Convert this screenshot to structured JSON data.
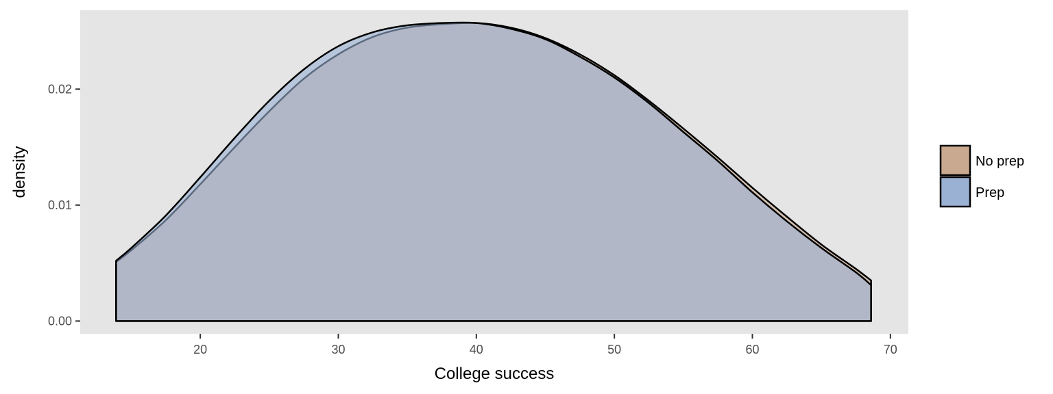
{
  "chart_data": {
    "type": "area",
    "subtype": "density",
    "title": "",
    "xlabel": "College success",
    "ylabel": "density",
    "xlim": [
      11.3,
      71.3
    ],
    "ylim": [
      -0.0011,
      0.0268
    ],
    "x_ticks": [
      20,
      30,
      40,
      50,
      60,
      70
    ],
    "x_tick_labels": [
      "20",
      "30",
      "40",
      "50",
      "60",
      "70"
    ],
    "y_ticks": [
      0.0,
      0.01,
      0.02
    ],
    "y_tick_labels": [
      "0.00",
      "0.01",
      "0.02"
    ],
    "grid": false,
    "panel_background": "#e5e5e5",
    "legend": {
      "placement": "right",
      "entries": [
        "No prep",
        "Prep"
      ]
    },
    "series": [
      {
        "name": "No prep",
        "fill": "#c9a98f",
        "x": [
          13.9,
          15,
          17.5,
          20,
          22.5,
          25,
          27.5,
          30,
          32.5,
          35,
          37.5,
          40,
          42.5,
          45,
          47.5,
          50,
          52.5,
          55,
          57.5,
          60,
          62.5,
          65,
          67.5,
          68.6
        ],
        "y": [
          0.0051,
          0.0061,
          0.0087,
          0.0118,
          0.015,
          0.0181,
          0.0209,
          0.023,
          0.0245,
          0.0253,
          0.0256,
          0.0257,
          0.0253,
          0.0244,
          0.023,
          0.0212,
          0.019,
          0.0166,
          0.0141,
          0.0115,
          0.009,
          0.0066,
          0.0045,
          0.0035
        ]
      },
      {
        "name": "Prep",
        "fill": "#9ab1d4",
        "x": [
          13.9,
          15,
          17.5,
          20,
          22.5,
          25,
          27.5,
          30,
          32.5,
          35,
          37.5,
          40,
          42.5,
          45,
          47.5,
          50,
          52.5,
          55,
          57.5,
          60,
          62.5,
          65,
          67.5,
          68.6
        ],
        "y": [
          0.0052,
          0.0063,
          0.0091,
          0.0124,
          0.0158,
          0.019,
          0.0217,
          0.0237,
          0.0249,
          0.0255,
          0.0257,
          0.0257,
          0.0252,
          0.0243,
          0.0228,
          0.021,
          0.0188,
          0.0163,
          0.0138,
          0.0111,
          0.0086,
          0.0063,
          0.0042,
          0.0031
        ]
      }
    ]
  }
}
